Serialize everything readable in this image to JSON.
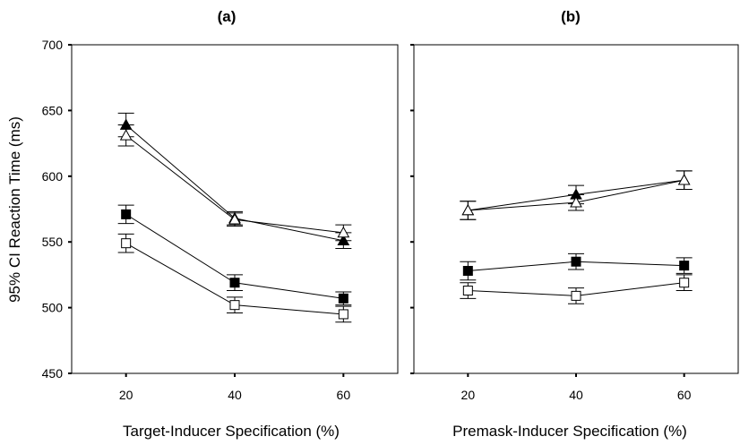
{
  "chart_data": [
    {
      "type": "line",
      "title": "(a)",
      "xlabel": "Target-Inducer Specification (%)",
      "ylabel": "95% CI Reaction Time (ms)",
      "x": [
        20,
        40,
        60
      ],
      "xticks": [
        "20",
        "40",
        "60"
      ],
      "xlim": [
        10,
        70
      ],
      "ylim": [
        450,
        700
      ],
      "yticks": [
        "450",
        "500",
        "550",
        "600",
        "650",
        "700"
      ],
      "grid": false,
      "series": [
        {
          "marker": "triangle-filled",
          "values": [
            639,
            568,
            551
          ],
          "ci": [
            9,
            5,
            6
          ]
        },
        {
          "marker": "triangle-open",
          "values": [
            631,
            567,
            557
          ],
          "ci": [
            8,
            5,
            6
          ]
        },
        {
          "marker": "square-filled",
          "values": [
            571,
            519,
            507
          ],
          "ci": [
            7,
            6,
            5
          ]
        },
        {
          "marker": "square-open",
          "values": [
            549,
            502,
            495
          ],
          "ci": [
            7,
            6,
            6
          ]
        }
      ]
    },
    {
      "type": "line",
      "title": "(b)",
      "xlabel": "Premask-Inducer Specification (%)",
      "ylabel": "",
      "x": [
        20,
        40,
        60
      ],
      "xticks": [
        "20",
        "40",
        "60"
      ],
      "xlim": [
        10,
        70
      ],
      "ylim": [
        450,
        700
      ],
      "grid": false,
      "series": [
        {
          "marker": "triangle-filled",
          "values": [
            574,
            586,
            597
          ],
          "ci": [
            7,
            7,
            7
          ]
        },
        {
          "marker": "triangle-open",
          "values": [
            574,
            580,
            597
          ],
          "ci": [
            7,
            6,
            7
          ]
        },
        {
          "marker": "square-filled",
          "values": [
            528,
            535,
            532
          ],
          "ci": [
            7,
            6,
            6
          ]
        },
        {
          "marker": "square-open",
          "values": [
            513,
            509,
            519
          ],
          "ci": [
            6,
            6,
            6
          ]
        }
      ]
    }
  ]
}
